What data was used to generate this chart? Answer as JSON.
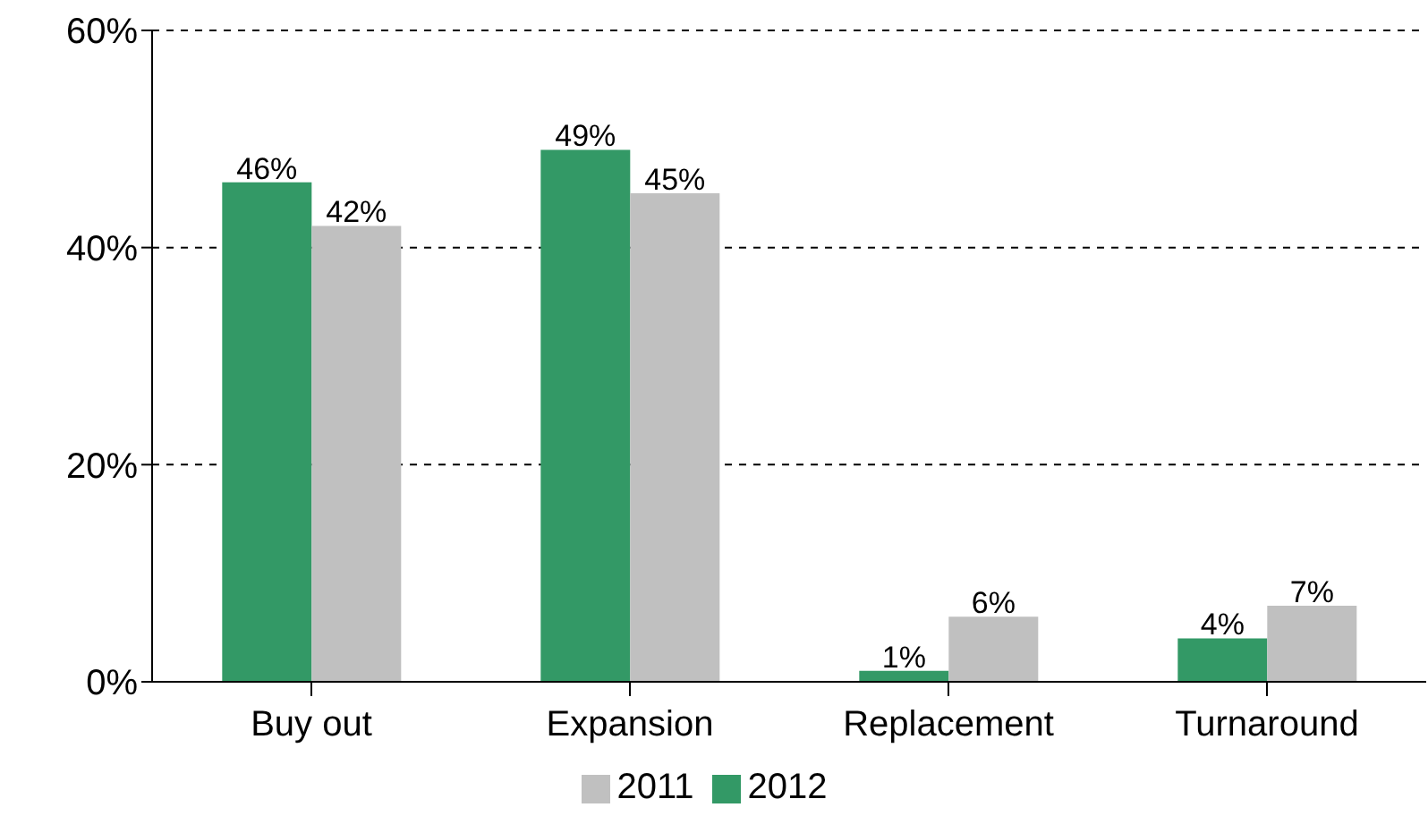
{
  "chart_data": {
    "type": "bar",
    "categories": [
      "Buy out",
      "Expansion",
      "Replacement",
      "Turnaround"
    ],
    "series": [
      {
        "name": "2012",
        "color": "#339966",
        "values": [
          46,
          49,
          1,
          4
        ],
        "value_labels": [
          "46%",
          "49%",
          "1%",
          "4%"
        ]
      },
      {
        "name": "2011",
        "color": "#c0c0c0",
        "values": [
          42,
          45,
          6,
          7
        ],
        "value_labels": [
          "42%",
          "45%",
          "6%",
          "7%"
        ]
      }
    ],
    "ylim": [
      0,
      60
    ],
    "yticks": [
      {
        "value": 0,
        "label": "0%"
      },
      {
        "value": 20,
        "label": "20%"
      },
      {
        "value": 40,
        "label": "40%"
      },
      {
        "value": 60,
        "label": "60%"
      }
    ],
    "grid": "y",
    "legend": "bottom"
  }
}
